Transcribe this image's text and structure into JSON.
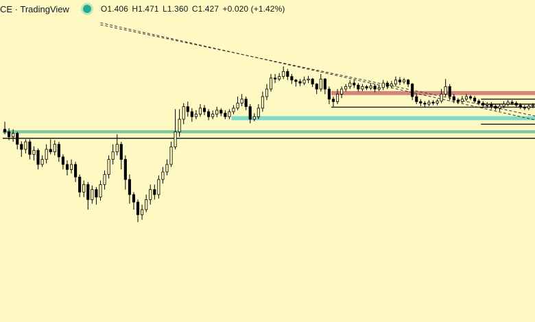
{
  "header": {
    "symbol_title": "CE · TradingView",
    "ohlc": {
      "open": "O1.406",
      "high": "H1.471",
      "low": "L1.360",
      "close": "C1.427",
      "change": "+0.020 (+1.42%)"
    }
  },
  "colors": {
    "background": "#fef9c3",
    "candles": "#000000",
    "resistance_zone": "#d4857a",
    "support_zone": "#7ed9c8",
    "bottom_zone": "#7fc6a0",
    "header_dot": "#22ab94"
  },
  "chart_data": {
    "type": "candlestick",
    "x_axis_visible": false,
    "y_axis_visible": false,
    "grid": false,
    "legend": "none",
    "candles": [
      [
        0,
        220,
        215,
        235,
        210
      ],
      [
        1,
        215,
        205,
        222,
        198
      ],
      [
        2,
        205,
        212,
        220,
        195
      ],
      [
        3,
        212,
        190,
        215,
        180
      ],
      [
        4,
        190,
        180,
        196,
        165
      ],
      [
        5,
        180,
        195,
        200,
        172
      ],
      [
        6,
        195,
        170,
        200,
        160
      ],
      [
        7,
        170,
        178,
        186,
        158
      ],
      [
        8,
        178,
        150,
        182,
        140
      ],
      [
        9,
        150,
        160,
        168,
        145
      ],
      [
        10,
        160,
        180,
        190,
        152
      ],
      [
        11,
        180,
        175,
        200,
        170
      ],
      [
        12,
        175,
        190,
        198,
        168
      ],
      [
        13,
        190,
        165,
        195,
        155
      ],
      [
        14,
        165,
        150,
        170,
        140
      ],
      [
        15,
        150,
        140,
        158,
        128
      ],
      [
        16,
        140,
        150,
        160,
        132
      ],
      [
        17,
        150,
        125,
        155,
        115
      ],
      [
        18,
        125,
        95,
        130,
        85
      ],
      [
        19,
        95,
        110,
        118,
        85
      ],
      [
        20,
        110,
        80,
        115,
        60
      ],
      [
        21,
        80,
        100,
        108,
        72
      ],
      [
        22,
        100,
        85,
        105,
        70
      ],
      [
        23,
        85,
        110,
        118,
        78
      ],
      [
        24,
        110,
        130,
        138,
        100
      ],
      [
        25,
        130,
        160,
        168,
        122
      ],
      [
        26,
        160,
        175,
        190,
        150
      ],
      [
        27,
        175,
        190,
        210,
        168
      ],
      [
        28,
        190,
        160,
        195,
        140
      ],
      [
        29,
        160,
        120,
        168,
        100
      ],
      [
        30,
        120,
        90,
        130,
        72
      ],
      [
        31,
        90,
        75,
        95,
        60
      ],
      [
        32,
        75,
        50,
        80,
        35
      ],
      [
        33,
        50,
        60,
        70,
        40
      ],
      [
        34,
        60,
        80,
        90,
        55
      ],
      [
        35,
        80,
        100,
        110,
        70
      ],
      [
        36,
        100,
        90,
        110,
        80
      ],
      [
        37,
        90,
        120,
        128,
        82
      ],
      [
        38,
        120,
        135,
        145,
        112
      ],
      [
        39,
        135,
        150,
        160,
        128
      ],
      [
        40,
        150,
        185,
        195,
        145
      ],
      [
        41,
        185,
        215,
        260,
        180
      ],
      [
        42,
        215,
        240,
        260,
        205
      ],
      [
        43,
        240,
        265,
        272,
        230
      ],
      [
        44,
        265,
        255,
        275,
        245
      ],
      [
        45,
        255,
        245,
        262,
        235
      ],
      [
        46,
        245,
        250,
        258,
        240
      ],
      [
        47,
        250,
        262,
        270,
        245
      ],
      [
        48,
        262,
        255,
        268,
        248
      ],
      [
        49,
        255,
        245,
        260,
        238
      ],
      [
        50,
        245,
        250,
        257,
        240
      ],
      [
        51,
        250,
        258,
        265,
        244
      ],
      [
        52,
        258,
        252,
        262,
        246
      ],
      [
        53,
        252,
        245,
        258,
        240
      ],
      [
        54,
        245,
        255,
        260,
        240
      ],
      [
        55,
        255,
        262,
        268,
        250
      ],
      [
        56,
        262,
        272,
        285,
        258
      ],
      [
        57,
        272,
        280,
        290,
        266
      ],
      [
        58,
        280,
        265,
        285,
        258
      ],
      [
        59,
        265,
        240,
        270,
        232
      ],
      [
        60,
        240,
        245,
        252,
        236
      ],
      [
        61,
        245,
        262,
        270,
        240
      ],
      [
        62,
        262,
        285,
        295,
        255
      ],
      [
        63,
        285,
        300,
        310,
        278
      ],
      [
        64,
        300,
        322,
        330,
        295
      ],
      [
        65,
        322,
        320,
        330,
        312
      ],
      [
        66,
        320,
        325,
        332,
        316
      ],
      [
        67,
        325,
        335,
        345,
        320
      ],
      [
        68,
        335,
        325,
        340,
        318
      ],
      [
        69,
        325,
        318,
        330,
        310
      ],
      [
        70,
        318,
        315,
        320,
        305
      ],
      [
        71,
        315,
        312,
        320,
        306
      ],
      [
        72,
        312,
        318,
        325,
        308
      ],
      [
        73,
        318,
        320,
        326,
        312
      ],
      [
        74,
        320,
        310,
        322,
        304
      ],
      [
        75,
        310,
        300,
        312,
        290
      ],
      [
        76,
        300,
        320,
        330,
        295
      ],
      [
        77,
        320,
        300,
        322,
        290
      ],
      [
        78,
        300,
        280,
        305,
        270
      ],
      [
        79,
        280,
        275,
        285,
        265
      ],
      [
        80,
        275,
        290,
        300,
        270
      ],
      [
        81,
        290,
        300,
        305,
        282
      ],
      [
        82,
        300,
        305,
        310,
        295
      ],
      [
        83,
        305,
        312,
        318,
        300
      ],
      [
        84,
        312,
        308,
        318,
        302
      ],
      [
        85,
        308,
        300,
        312,
        295
      ],
      [
        86,
        300,
        305,
        310,
        296
      ],
      [
        87,
        305,
        302,
        308,
        298
      ],
      [
        88,
        302,
        306,
        312,
        298
      ],
      [
        89,
        306,
        300,
        310,
        294
      ],
      [
        90,
        300,
        303,
        308,
        296
      ],
      [
        91,
        303,
        312,
        318,
        298
      ],
      [
        92,
        312,
        306,
        316,
        300
      ],
      [
        93,
        306,
        310,
        316,
        302
      ],
      [
        94,
        310,
        318,
        325,
        305
      ],
      [
        95,
        318,
        314,
        324,
        308
      ],
      [
        96,
        314,
        318,
        322,
        310
      ],
      [
        97,
        318,
        310,
        320,
        304
      ],
      [
        98,
        310,
        285,
        312,
        278
      ],
      [
        99,
        285,
        275,
        290,
        270
      ],
      [
        100,
        275,
        272,
        280,
        266
      ],
      [
        101,
        272,
        270,
        276,
        264
      ],
      [
        102,
        270,
        274,
        278,
        266
      ],
      [
        103,
        274,
        272,
        278,
        268
      ],
      [
        104,
        272,
        276,
        280,
        268
      ],
      [
        105,
        276,
        290,
        300,
        272
      ],
      [
        106,
        290,
        305,
        320,
        285
      ],
      [
        107,
        305,
        285,
        310,
        278
      ],
      [
        108,
        285,
        278,
        290,
        272
      ],
      [
        109,
        278,
        275,
        282,
        270
      ],
      [
        110,
        275,
        280,
        286,
        272
      ],
      [
        111,
        280,
        285,
        290,
        276
      ],
      [
        112,
        285,
        282,
        288,
        278
      ],
      [
        113,
        282,
        276,
        286,
        272
      ],
      [
        114,
        276,
        272,
        280,
        268
      ],
      [
        115,
        272,
        268,
        276,
        262
      ],
      [
        116,
        268,
        270,
        274,
        262
      ],
      [
        117,
        270,
        266,
        274,
        260
      ],
      [
        118,
        266,
        262,
        270,
        258
      ],
      [
        119,
        262,
        266,
        270,
        256
      ],
      [
        120,
        266,
        270,
        276,
        262
      ],
      [
        121,
        270,
        274,
        278,
        266
      ],
      [
        122,
        274,
        272,
        278,
        268
      ],
      [
        123,
        272,
        268,
        276,
        264
      ],
      [
        124,
        268,
        264,
        272,
        260
      ],
      [
        125,
        264,
        262,
        268,
        258
      ],
      [
        126,
        262,
        266,
        270,
        258
      ],
      [
        127,
        266,
        268,
        272,
        262
      ]
    ],
    "y_range": [
      0,
      450
    ],
    "zones": [
      {
        "name": "resistance",
        "color": "#d4857a",
        "from_index": 79,
        "y_low": 288,
        "y_high": 296
      },
      {
        "name": "support",
        "color": "#7ed9c8",
        "from_index": 55,
        "y_low": 238,
        "y_high": 246
      },
      {
        "name": "bottom",
        "color": "#7fc6a0",
        "from_index": 0,
        "y_low": 212,
        "y_high": 218
      }
    ],
    "trendlines": [
      {
        "from": [
          23,
          432
        ],
        "to": [
          127,
          248
        ],
        "dashed": true
      },
      {
        "from": [
          23,
          428
        ],
        "to": [
          127,
          256
        ],
        "dashed": true
      }
    ],
    "levels": [
      {
        "y": 202,
        "from_index": 0
      },
      {
        "y": 264,
        "from_index": 79
      },
      {
        "y": 270,
        "from_index": 115
      },
      {
        "y": 280,
        "from_index": 115
      },
      {
        "y": 230,
        "from_index": 115
      }
    ]
  }
}
